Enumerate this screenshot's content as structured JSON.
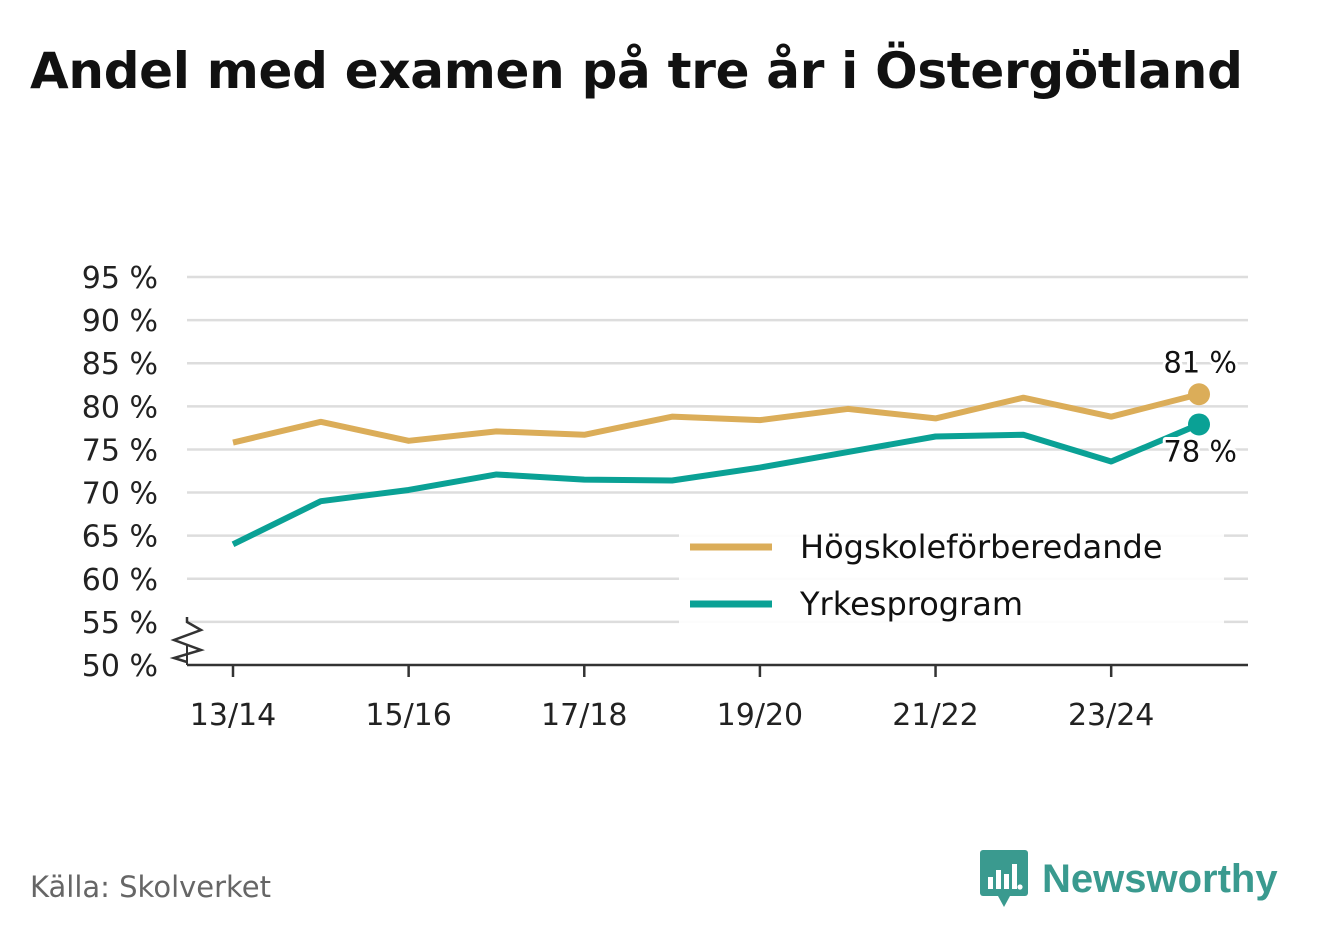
{
  "title": "Andel med examen på tre år i Östergötland",
  "source": "Källa: Skolverket",
  "brand": {
    "name": "Newsworthy",
    "icon": "newsworthy-logo-icon",
    "color": "#3a9a8f"
  },
  "chart_data": {
    "type": "line",
    "title": "Andel med examen på tre år i Östergötland",
    "xlabel": "",
    "ylabel": "",
    "ylim": [
      50,
      95
    ],
    "y_ticks": [
      50,
      55,
      60,
      65,
      70,
      75,
      80,
      85,
      90,
      95
    ],
    "y_tick_suffix": " %",
    "y_axis_break": true,
    "grid": true,
    "legend_position": "bottom-right",
    "x": [
      "13/14",
      "14/15",
      "15/16",
      "16/17",
      "17/18",
      "18/19",
      "19/20",
      "20/21",
      "21/22",
      "22/23",
      "23/24",
      "24/25"
    ],
    "x_tick_labels": [
      "13/14",
      "15/16",
      "17/18",
      "19/20",
      "21/22",
      "23/24"
    ],
    "series": [
      {
        "name": "Högskoleförberedande",
        "color": "#dbad59",
        "values": [
          75.8,
          78.2,
          76.0,
          77.1,
          76.7,
          78.8,
          78.4,
          79.7,
          78.6,
          81.0,
          78.8,
          81.4
        ],
        "end_label": "81 %"
      },
      {
        "name": "Yrkesprogram",
        "color": "#0aa195",
        "values": [
          64.0,
          69.0,
          70.3,
          72.1,
          71.5,
          71.4,
          72.9,
          74.7,
          76.5,
          76.7,
          73.6,
          77.9
        ],
        "end_label": "78 %"
      }
    ]
  }
}
